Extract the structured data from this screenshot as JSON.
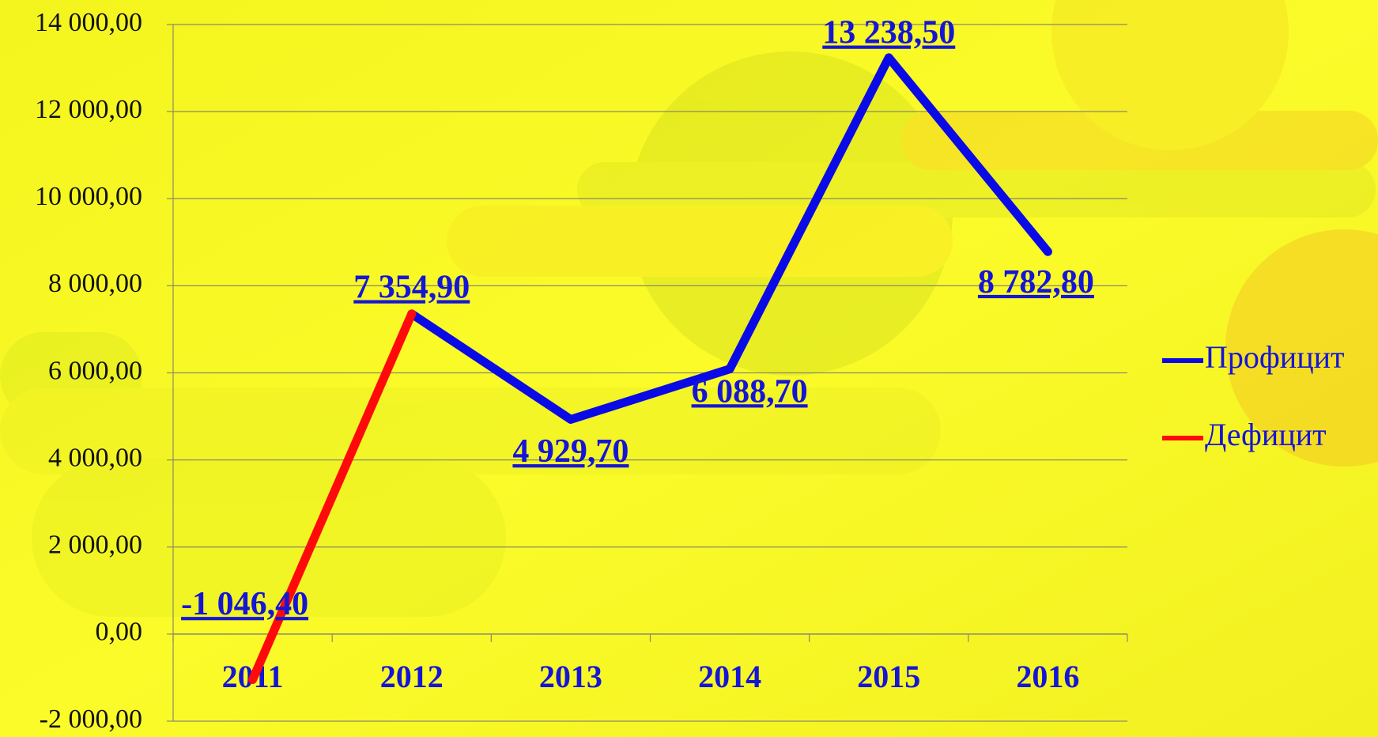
{
  "chart_data": {
    "type": "line",
    "categories": [
      "2011",
      "2012",
      "2013",
      "2014",
      "2015",
      "2016"
    ],
    "series": [
      {
        "name": "Профицит",
        "color": "#0a0ae6",
        "values": [
          null,
          7354.9,
          4929.7,
          6088.7,
          13238.5,
          8782.8
        ],
        "value_labels": [
          null,
          "7 354,90",
          "4 929,70",
          "6 088,70",
          "13 238,50",
          "8 782,80"
        ]
      },
      {
        "name": "Дефицит",
        "color": "#ff0a0a",
        "values": [
          -1046.4,
          7354.9,
          null,
          null,
          null,
          null
        ],
        "value_labels": [
          "-1 046,40",
          null,
          null,
          null,
          null,
          null
        ]
      }
    ],
    "ylim": [
      -2000,
      14000
    ],
    "yticks": [
      {
        "value": -2000,
        "label": "-2 000,00"
      },
      {
        "value": 0,
        "label": "0,00"
      },
      {
        "value": 2000,
        "label": "2 000,00"
      },
      {
        "value": 4000,
        "label": "4 000,00"
      },
      {
        "value": 6000,
        "label": "6 000,00"
      },
      {
        "value": 8000,
        "label": "8 000,00"
      },
      {
        "value": 10000,
        "label": "10 000,00"
      },
      {
        "value": 12000,
        "label": "12 000,00"
      },
      {
        "value": 14000,
        "label": "14 000,00"
      }
    ],
    "grid": true,
    "legend": "right"
  }
}
